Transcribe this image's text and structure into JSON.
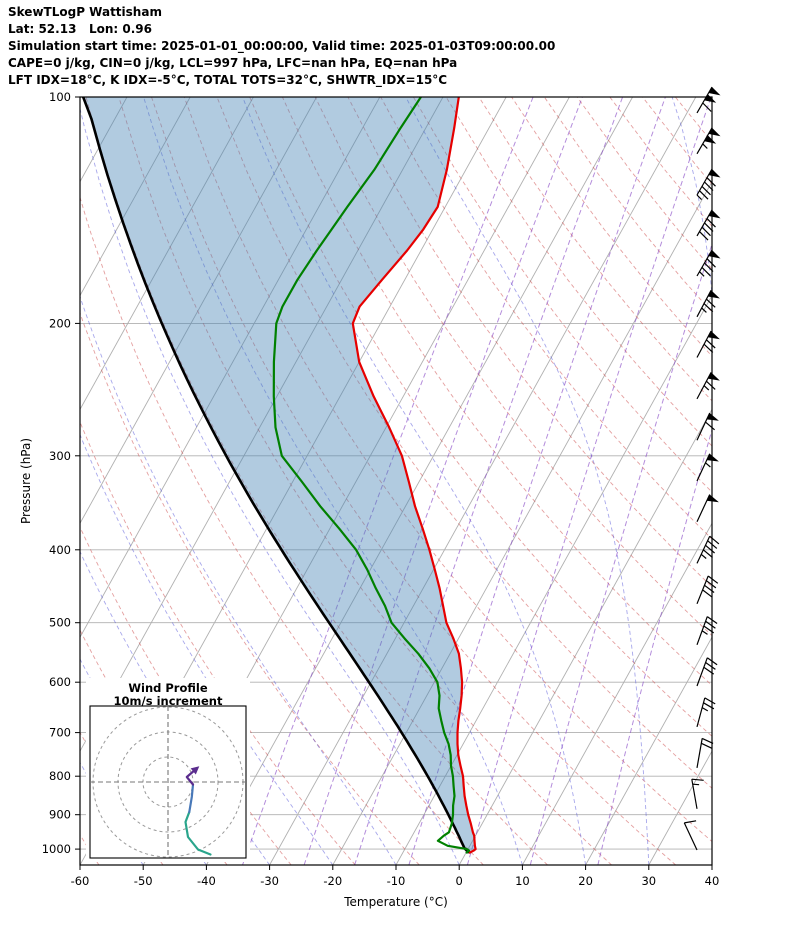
{
  "header": {
    "line1": "SkewTLogP Wattisham",
    "line2": "Lat: 52.13   Lon: 0.96",
    "line3": "Simulation start time: 2025-01-01_00:00:00, Valid time: 2025-01-03T09:00:00.00",
    "line4": "CAPE=0 j/kg, CIN=0 j/kg, LCL=997 hPa, LFC=nan hPa, EQ=nan hPa",
    "line5": "LFT IDX=18°C, K IDX=-5°C, TOTAL TOTS=32°C, SHWTR_IDX=15°C"
  },
  "chart_data": {
    "type": "skewt-logp",
    "title": "SkewTLogP Wattisham",
    "xlabel": "Temperature (°C)",
    "ylabel": "Pressure (hPa)",
    "x_range_c": [
      -60,
      40
    ],
    "p_range_hpa": [
      100,
      1050
    ],
    "x_ticks": [
      -60,
      -50,
      -40,
      -30,
      -20,
      -10,
      0,
      10,
      20,
      30,
      40
    ],
    "p_ticks": [
      100,
      200,
      300,
      400,
      500,
      600,
      700,
      800,
      900,
      1000
    ],
    "isotherms_c": {
      "start": -130,
      "end": 40,
      "step": 10
    },
    "dry_adiabats_c_at_1000": {
      "start": -60,
      "end": 200,
      "step": 10
    },
    "moist_adiabats_c_at_1050": {
      "start": -100,
      "end": 40,
      "step": 10
    },
    "mixing_ratio_g_kg": [
      0.2,
      0.5,
      1,
      2,
      4,
      8,
      16
    ],
    "sounding": {
      "pressure_hpa": [
        1012,
        1005,
        1000,
        990,
        975,
        960,
        950,
        925,
        900,
        875,
        850,
        825,
        800,
        775,
        750,
        725,
        700,
        675,
        650,
        625,
        600,
        575,
        550,
        525,
        500,
        475,
        450,
        425,
        400,
        375,
        350,
        325,
        300,
        275,
        250,
        225,
        200,
        190,
        175,
        160,
        150,
        140,
        125,
        110,
        100
      ],
      "temperature_c": [
        0.5,
        1.0,
        1.2,
        0.8,
        0.3,
        -0.2,
        -0.7,
        -1.8,
        -3.0,
        -4.1,
        -5.2,
        -6.2,
        -7.2,
        -8.5,
        -9.8,
        -10.9,
        -11.9,
        -12.8,
        -13.6,
        -14.5,
        -15.6,
        -17.0,
        -18.6,
        -20.8,
        -23.3,
        -25.3,
        -27.4,
        -29.8,
        -32.4,
        -35.3,
        -38.5,
        -41.6,
        -45.0,
        -49.5,
        -54.7,
        -60.0,
        -64.4,
        -64.8,
        -63.6,
        -62.2,
        -61.5,
        -61.2,
        -63.0,
        -65.5,
        -67.5
      ],
      "dewpoint_c": [
        0.0,
        0.3,
        -0.2,
        -3.5,
        -5.5,
        -5.0,
        -4.5,
        -4.8,
        -5.4,
        -6.2,
        -6.8,
        -7.8,
        -8.8,
        -10.0,
        -11.0,
        -12.3,
        -14.0,
        -15.5,
        -17.0,
        -18.0,
        -19.5,
        -22.0,
        -25.0,
        -28.5,
        -32.0,
        -34.5,
        -37.5,
        -40.5,
        -44.0,
        -48.5,
        -53.5,
        -58.5,
        -64.0,
        -67.5,
        -70.5,
        -73.5,
        -76.5,
        -77.0,
        -77.0,
        -76.5,
        -76.0,
        -75.5,
        -74.5,
        -74.0,
        -73.5
      ]
    },
    "parcel": {
      "surface_pressure_hpa": 1012,
      "surface_temperature_c": 0.5,
      "lcl_hpa": 997
    },
    "wind_barbs": [
      {
        "p": 1003,
        "speed_kt": 12,
        "dir_deg": 335
      },
      {
        "p": 884,
        "speed_kt": 18,
        "dir_deg": 350
      },
      {
        "p": 780,
        "speed_kt": 22,
        "dir_deg": 10
      },
      {
        "p": 688,
        "speed_kt": 28,
        "dir_deg": 15
      },
      {
        "p": 607,
        "speed_kt": 32,
        "dir_deg": 20
      },
      {
        "p": 535,
        "speed_kt": 38,
        "dir_deg": 20
      },
      {
        "p": 472,
        "speed_kt": 42,
        "dir_deg": 22
      },
      {
        "p": 417,
        "speed_kt": 48,
        "dir_deg": 25
      },
      {
        "p": 367,
        "speed_kt": 52,
        "dir_deg": 25
      },
      {
        "p": 324,
        "speed_kt": 58,
        "dir_deg": 25
      },
      {
        "p": 286,
        "speed_kt": 62,
        "dir_deg": 25
      },
      {
        "p": 252,
        "speed_kt": 68,
        "dir_deg": 28
      },
      {
        "p": 222,
        "speed_kt": 72,
        "dir_deg": 28
      },
      {
        "p": 196,
        "speed_kt": 78,
        "dir_deg": 28
      },
      {
        "p": 173,
        "speed_kt": 85,
        "dir_deg": 30
      },
      {
        "p": 153,
        "speed_kt": 90,
        "dir_deg": 30
      },
      {
        "p": 135,
        "speed_kt": 95,
        "dir_deg": 30
      },
      {
        "p": 119,
        "speed_kt": 105,
        "dir_deg": 30
      },
      {
        "p": 105,
        "speed_kt": 110,
        "dir_deg": 30
      }
    ],
    "colors": {
      "temperature": "#e60000",
      "dewpoint": "#008000",
      "parcel": "#000000",
      "shade_rgba": "rgba(70,130,180,0.42)",
      "isotherm": "#b0b0b0",
      "pressure_grid": "#b0b0b0",
      "dry_adiabat": "rgba(205,80,80,0.55)",
      "moist_adiabat": "rgba(80,80,215,0.5)",
      "mixing_ratio": "rgba(140,80,200,0.65)",
      "barb": "#000000"
    }
  },
  "hodograph": {
    "title": "Wind Profile",
    "subtitle": "10m/s increment",
    "ring_interval_ms": 10,
    "rings_ms": [
      10,
      20,
      30
    ],
    "segments": [
      {
        "name": "upper-level",
        "color": "#2aa58c",
        "points_uv_ms": [
          [
            17,
            -29
          ],
          [
            12,
            -27
          ],
          [
            8,
            -22
          ],
          [
            7,
            -16
          ],
          [
            8.5,
            -12
          ]
        ],
        "arrow": false
      },
      {
        "name": "mid-level",
        "color": "#4878b8",
        "points_uv_ms": [
          [
            8.5,
            -12
          ],
          [
            9.5,
            -6
          ],
          [
            10,
            -1
          ]
        ],
        "arrow": false
      },
      {
        "name": "low-level",
        "color": "#5b2d8e",
        "points_uv_ms": [
          [
            10,
            -1
          ],
          [
            7.5,
            2
          ],
          [
            11,
            5
          ]
        ],
        "arrow": true
      }
    ]
  }
}
